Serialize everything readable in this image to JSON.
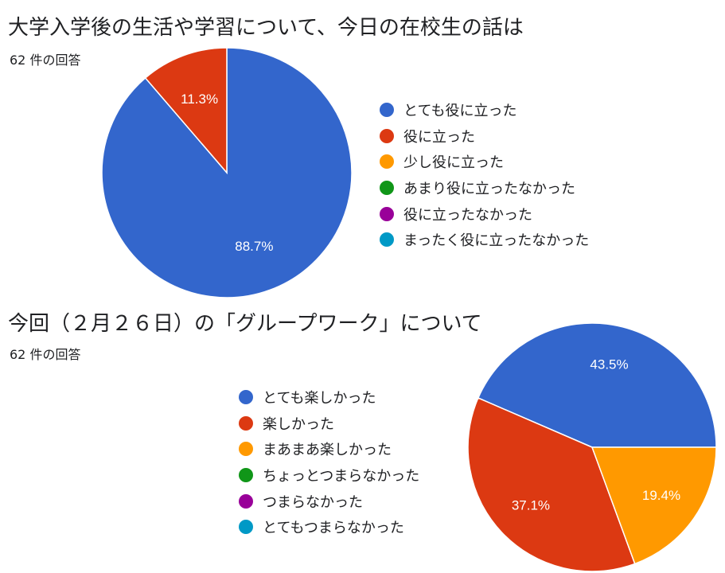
{
  "chart_data": [
    {
      "type": "pie",
      "title": "大学入学後の生活や学習について、今日の在校生の話は",
      "subtitle": "62 件の回答",
      "legend_position": "right",
      "categories": [
        "とても役に立った",
        "役に立った",
        "少し役に立った",
        "あまり役に立ったなかった",
        "役に立ったなかった",
        "まったく役に立ったなかった"
      ],
      "values": [
        88.7,
        11.3,
        0,
        0,
        0,
        0
      ],
      "value_labels": [
        "88.7%",
        "11.3%",
        "",
        "",
        "",
        ""
      ],
      "colors": [
        "#3366cc",
        "#dc3912",
        "#ff9900",
        "#109618",
        "#990099",
        "#0099c6"
      ]
    },
    {
      "type": "pie",
      "title": "今回（２月２６日）の「グループワーク」について",
      "subtitle": "62 件の回答",
      "legend_position": "left",
      "categories": [
        "とても楽しかった",
        "楽しかった",
        "まあまあ楽しかった",
        "ちょっとつまらなかった",
        "つまらなかった",
        "とてもつまらなかった"
      ],
      "values": [
        43.5,
        37.1,
        19.4,
        0,
        0,
        0
      ],
      "value_labels": [
        "43.5%",
        "37.1%",
        "19.4%",
        "",
        "",
        ""
      ],
      "colors": [
        "#3366cc",
        "#dc3912",
        "#ff9900",
        "#109618",
        "#990099",
        "#0099c6"
      ]
    }
  ]
}
